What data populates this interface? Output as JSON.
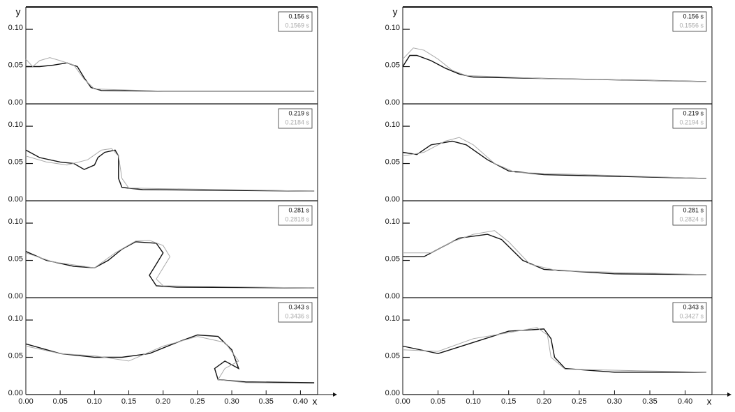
{
  "chart_data": [
    {
      "type": "line",
      "ylabel": "y",
      "xlim": [
        0,
        0.425
      ],
      "ylim": [
        0,
        0.13
      ],
      "yticks": [
        {
          "value": 0,
          "label": "0.00"
        },
        {
          "value": 0.05,
          "label": "0.05"
        },
        {
          "value": 0.1,
          "label": "0.10"
        }
      ],
      "series": [
        {
          "name": "0.156 s",
          "color": "#111111",
          "x": [
            0,
            0.02,
            0.04,
            0.06,
            0.075,
            0.085,
            0.095,
            0.11,
            0.2,
            0.42
          ],
          "values": [
            0.05,
            0.05,
            0.052,
            0.055,
            0.05,
            0.035,
            0.022,
            0.018,
            0.017,
            0.017
          ]
        },
        {
          "name": "0.1569 s",
          "color": "#aaaaaa",
          "x": [
            0,
            0.01,
            0.02,
            0.035,
            0.05,
            0.07,
            0.085,
            0.1,
            0.2,
            0.42
          ],
          "values": [
            0.06,
            0.05,
            0.058,
            0.062,
            0.058,
            0.052,
            0.033,
            0.02,
            0.017,
            0.017
          ]
        }
      ]
    },
    {
      "type": "line",
      "xlim": [
        0,
        0.425
      ],
      "ylim": [
        0,
        0.13
      ],
      "yticks": [
        {
          "value": 0,
          "label": "0.00"
        },
        {
          "value": 0.05,
          "label": "0.05"
        },
        {
          "value": 0.1,
          "label": "0.10"
        }
      ],
      "series": [
        {
          "name": "0.219 s",
          "color": "#111111",
          "x": [
            0,
            0.02,
            0.05,
            0.07,
            0.085,
            0.1,
            0.105,
            0.115,
            0.13,
            0.135,
            0.135,
            0.14,
            0.17,
            0.42
          ],
          "values": [
            0.068,
            0.058,
            0.052,
            0.05,
            0.042,
            0.048,
            0.058,
            0.065,
            0.068,
            0.06,
            0.03,
            0.018,
            0.015,
            0.013
          ]
        },
        {
          "name": "0.2184 s",
          "color": "#aaaaaa",
          "x": [
            0,
            0.03,
            0.06,
            0.09,
            0.11,
            0.125,
            0.135,
            0.14,
            0.15,
            0.42
          ],
          "values": [
            0.06,
            0.052,
            0.048,
            0.055,
            0.068,
            0.07,
            0.06,
            0.03,
            0.017,
            0.013
          ]
        }
      ]
    },
    {
      "type": "line",
      "xlim": [
        0,
        0.425
      ],
      "ylim": [
        0,
        0.13
      ],
      "yticks": [
        {
          "value": 0,
          "label": "0.00"
        },
        {
          "value": 0.05,
          "label": "0.05"
        },
        {
          "value": 0.1,
          "label": "0.10"
        }
      ],
      "series": [
        {
          "name": "0.281 s",
          "color": "#111111",
          "x": [
            0,
            0.03,
            0.07,
            0.1,
            0.12,
            0.14,
            0.16,
            0.19,
            0.2,
            0.19,
            0.18,
            0.19,
            0.22,
            0.42
          ],
          "values": [
            0.062,
            0.05,
            0.042,
            0.04,
            0.05,
            0.065,
            0.075,
            0.073,
            0.06,
            0.045,
            0.03,
            0.016,
            0.014,
            0.013
          ]
        },
        {
          "name": "0.2818 s",
          "color": "#aaaaaa",
          "x": [
            0,
            0.04,
            0.1,
            0.13,
            0.16,
            0.18,
            0.2,
            0.21,
            0.2,
            0.19,
            0.2,
            0.42
          ],
          "values": [
            0.06,
            0.048,
            0.04,
            0.06,
            0.076,
            0.077,
            0.07,
            0.055,
            0.04,
            0.025,
            0.016,
            0.013
          ]
        }
      ]
    },
    {
      "type": "line",
      "xlabel": "x",
      "xlim": [
        0,
        0.425
      ],
      "ylim": [
        0,
        0.13
      ],
      "yticks": [
        {
          "value": 0,
          "label": "0.00"
        },
        {
          "value": 0.05,
          "label": "0.05"
        },
        {
          "value": 0.1,
          "label": "0.10"
        }
      ],
      "xticks": [
        {
          "value": 0,
          "label": "0.00"
        },
        {
          "value": 0.05,
          "label": "0.05"
        },
        {
          "value": 0.1,
          "label": "0.10"
        },
        {
          "value": 0.15,
          "label": "0.15"
        },
        {
          "value": 0.2,
          "label": "0.20"
        },
        {
          "value": 0.25,
          "label": "0.25"
        },
        {
          "value": 0.3,
          "label": "0.30"
        },
        {
          "value": 0.35,
          "label": "0.35"
        },
        {
          "value": 0.4,
          "label": "0.40"
        }
      ],
      "series": [
        {
          "name": "0.343 s",
          "color": "#111111",
          "x": [
            0,
            0.05,
            0.1,
            0.14,
            0.18,
            0.22,
            0.25,
            0.28,
            0.3,
            0.31,
            0.29,
            0.275,
            0.28,
            0.32,
            0.42
          ],
          "values": [
            0.068,
            0.055,
            0.05,
            0.05,
            0.055,
            0.07,
            0.08,
            0.078,
            0.06,
            0.035,
            0.045,
            0.035,
            0.02,
            0.017,
            0.016
          ]
        },
        {
          "name": "0.3436 s",
          "color": "#aaaaaa",
          "x": [
            0,
            0.05,
            0.1,
            0.15,
            0.2,
            0.25,
            0.29,
            0.31,
            0.29,
            0.28,
            0.32,
            0.42
          ],
          "values": [
            0.065,
            0.055,
            0.052,
            0.045,
            0.065,
            0.078,
            0.07,
            0.045,
            0.035,
            0.02,
            0.016,
            0.015
          ]
        }
      ]
    },
    {
      "type": "line",
      "ylabel": "y",
      "xlim": [
        0,
        0.438
      ],
      "ylim": [
        0,
        0.13
      ],
      "yticks": [
        {
          "value": 0,
          "label": "0.00"
        },
        {
          "value": 0.05,
          "label": "0.05"
        },
        {
          "value": 0.1,
          "label": "0.10"
        }
      ],
      "series": [
        {
          "name": "0.156 s",
          "color": "#111111",
          "x": [
            0,
            0.01,
            0.02,
            0.04,
            0.06,
            0.08,
            0.1,
            0.2,
            0.43
          ],
          "values": [
            0.05,
            0.065,
            0.065,
            0.058,
            0.048,
            0.04,
            0.036,
            0.034,
            0.03
          ]
        },
        {
          "name": "0.1556 s",
          "color": "#aaaaaa",
          "x": [
            0,
            0.015,
            0.03,
            0.05,
            0.07,
            0.09,
            0.2,
            0.43
          ],
          "values": [
            0.06,
            0.075,
            0.072,
            0.06,
            0.045,
            0.038,
            0.034,
            0.03
          ]
        }
      ]
    },
    {
      "type": "line",
      "xlim": [
        0,
        0.438
      ],
      "ylim": [
        0,
        0.13
      ],
      "yticks": [
        {
          "value": 0,
          "label": "0.00"
        },
        {
          "value": 0.05,
          "label": "0.05"
        },
        {
          "value": 0.1,
          "label": "0.10"
        }
      ],
      "series": [
        {
          "name": "0.219 s",
          "color": "#111111",
          "x": [
            0,
            0.02,
            0.04,
            0.07,
            0.09,
            0.12,
            0.15,
            0.2,
            0.43
          ],
          "values": [
            0.065,
            0.062,
            0.075,
            0.08,
            0.075,
            0.055,
            0.04,
            0.035,
            0.03
          ]
        },
        {
          "name": "0.2194 s",
          "color": "#aaaaaa",
          "x": [
            0,
            0.03,
            0.06,
            0.08,
            0.1,
            0.13,
            0.16,
            0.43
          ],
          "values": [
            0.06,
            0.065,
            0.08,
            0.085,
            0.075,
            0.05,
            0.038,
            0.03
          ]
        }
      ]
    },
    {
      "type": "line",
      "xlim": [
        0,
        0.438
      ],
      "ylim": [
        0,
        0.13
      ],
      "yticks": [
        {
          "value": 0,
          "label": "0.00"
        },
        {
          "value": 0.05,
          "label": "0.05"
        },
        {
          "value": 0.1,
          "label": "0.10"
        }
      ],
      "series": [
        {
          "name": "0.281 s",
          "color": "#111111",
          "x": [
            0,
            0.03,
            0.06,
            0.08,
            0.12,
            0.14,
            0.17,
            0.2,
            0.3,
            0.43
          ],
          "values": [
            0.055,
            0.055,
            0.07,
            0.08,
            0.085,
            0.078,
            0.05,
            0.038,
            0.032,
            0.031
          ]
        },
        {
          "name": "0.2824 s",
          "color": "#aaaaaa",
          "x": [
            0,
            0.04,
            0.07,
            0.1,
            0.13,
            0.15,
            0.18,
            0.22,
            0.43
          ],
          "values": [
            0.06,
            0.06,
            0.075,
            0.085,
            0.09,
            0.075,
            0.045,
            0.036,
            0.031
          ]
        }
      ]
    },
    {
      "type": "line",
      "xlabel": "x",
      "xlim": [
        0,
        0.438
      ],
      "ylim": [
        0,
        0.13
      ],
      "yticks": [
        {
          "value": 0,
          "label": "0.00"
        },
        {
          "value": 0.05,
          "label": "0.05"
        },
        {
          "value": 0.1,
          "label": "0.10"
        }
      ],
      "xticks": [
        {
          "value": 0,
          "label": "0.00"
        },
        {
          "value": 0.05,
          "label": "0.05"
        },
        {
          "value": 0.1,
          "label": "0.10"
        },
        {
          "value": 0.15,
          "label": "0.15"
        },
        {
          "value": 0.2,
          "label": "0.20"
        },
        {
          "value": 0.25,
          "label": "0.25"
        },
        {
          "value": 0.3,
          "label": "0.30"
        },
        {
          "value": 0.35,
          "label": "0.35"
        },
        {
          "value": 0.4,
          "label": "0.40"
        }
      ],
      "series": [
        {
          "name": "0.343 s",
          "color": "#111111",
          "x": [
            0,
            0.05,
            0.1,
            0.15,
            0.2,
            0.21,
            0.215,
            0.23,
            0.3,
            0.43
          ],
          "values": [
            0.065,
            0.055,
            0.07,
            0.085,
            0.088,
            0.075,
            0.05,
            0.035,
            0.03,
            0.03
          ]
        },
        {
          "name": "0.3427 s",
          "color": "#aaaaaa",
          "x": [
            0,
            0.05,
            0.1,
            0.15,
            0.19,
            0.205,
            0.21,
            0.23,
            0.43
          ],
          "values": [
            0.06,
            0.058,
            0.075,
            0.083,
            0.09,
            0.08,
            0.05,
            0.034,
            0.03
          ]
        }
      ]
    }
  ]
}
